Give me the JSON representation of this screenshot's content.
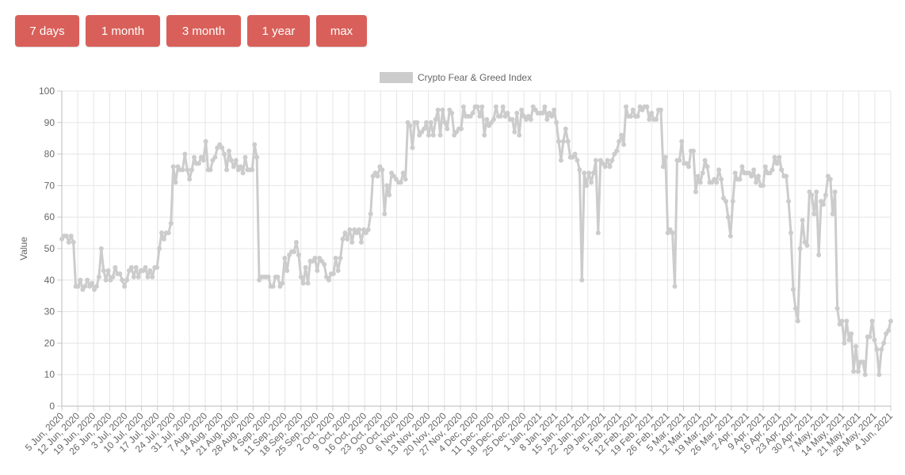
{
  "range_buttons": {
    "b7d": "7 days",
    "b1m": "1 month",
    "b3m": "3 month",
    "b1y": "1 year",
    "bmax": "max"
  },
  "colors": {
    "button": "#d9605a",
    "series": "#cccccc",
    "grid": "#e5e5e5",
    "text": "#666666"
  },
  "chart_data": {
    "type": "line",
    "legend": "Crypto Fear & Greed Index",
    "legend_position": "top",
    "ylabel": "Value",
    "xlabel": "",
    "ylim": [
      0,
      100
    ],
    "y_ticks": [
      0,
      10,
      20,
      30,
      40,
      50,
      60,
      70,
      80,
      90,
      100
    ],
    "grid": true,
    "x_tick_labels": [
      "5 Jun, 2020",
      "12 Jun, 2020",
      "19 Jun, 2020",
      "26 Jun, 2020",
      "3 Jul, 2020",
      "10 Jul, 2020",
      "17 Jul, 2020",
      "24 Jul, 2020",
      "31 Jul, 2020",
      "7 Aug, 2020",
      "14 Aug, 2020",
      "21 Aug, 2020",
      "28 Aug, 2020",
      "4 Sep, 2020",
      "11 Sep, 2020",
      "18 Sep, 2020",
      "25 Sep, 2020",
      "2 Oct, 2020",
      "9 Oct, 2020",
      "16 Oct, 2020",
      "23 Oct, 2020",
      "30 Oct, 2020",
      "6 Nov, 2020",
      "13 Nov, 2020",
      "20 Nov, 2020",
      "27 Nov, 2020",
      "4 Dec, 2020",
      "11 Dec, 2020",
      "18 Dec, 2020",
      "25 Dec, 2020",
      "1 Jan, 2021",
      "8 Jan, 2021",
      "15 Jan, 2021",
      "22 Jan, 2021",
      "29 Jan, 2021",
      "5 Feb, 2021",
      "12 Feb, 2021",
      "19 Feb, 2021",
      "26 Feb, 2021",
      "5 Mar, 2021",
      "12 Mar, 2021",
      "19 Mar, 2021",
      "26 Mar, 2021",
      "2 Apr, 2021",
      "9 Apr, 2021",
      "16 Apr, 2021",
      "23 Apr, 2021",
      "30 Apr, 2021",
      "7 May, 2021",
      "14 May, 2021",
      "21 May, 2021",
      "28 May, 2021",
      "4 Jun, 2021"
    ],
    "series": [
      {
        "name": "Crypto Fear & Greed Index",
        "values": [
          53,
          54,
          54,
          52,
          54,
          52,
          38,
          38,
          40,
          37,
          38,
          40,
          38,
          39,
          37,
          38,
          41,
          50,
          43,
          40,
          43,
          40,
          41,
          44,
          42,
          42,
          40,
          38,
          40,
          43,
          44,
          41,
          44,
          41,
          43,
          43,
          44,
          41,
          43,
          41,
          44,
          44,
          50,
          55,
          53,
          55,
          55,
          58,
          76,
          71,
          76,
          75,
          75,
          80,
          75,
          72,
          75,
          79,
          77,
          77,
          79,
          78,
          84,
          75,
          75,
          78,
          79,
          82,
          83,
          82,
          80,
          75,
          81,
          78,
          76,
          78,
          75,
          76,
          74,
          79,
          75,
          75,
          75,
          83,
          79,
          40,
          41,
          41,
          41,
          41,
          38,
          38,
          41,
          41,
          38,
          39,
          47,
          43,
          48,
          49,
          49,
          52,
          48,
          41,
          39,
          44,
          39,
          46,
          46,
          47,
          43,
          47,
          46,
          45,
          41,
          40,
          42,
          42,
          47,
          43,
          47,
          53,
          55,
          53,
          56,
          52,
          56,
          55,
          56,
          52,
          56,
          55,
          56,
          61,
          73,
          74,
          73,
          76,
          75,
          61,
          70,
          67,
          74,
          73,
          72,
          71,
          71,
          74,
          72,
          90,
          89,
          82,
          90,
          90,
          86,
          87,
          88,
          90,
          86,
          90,
          86,
          91,
          94,
          86,
          94,
          90,
          88,
          94,
          93,
          86,
          87,
          88,
          88,
          95,
          92,
          92,
          92,
          93,
          95,
          95,
          92,
          95,
          86,
          91,
          89,
          90,
          91,
          95,
          92,
          92,
          95,
          92,
          93,
          91,
          91,
          87,
          93,
          86,
          94,
          92,
          91,
          92,
          91,
          95,
          94,
          93,
          93,
          93,
          95,
          91,
          93,
          92,
          94,
          90,
          84,
          78,
          84,
          88,
          84,
          79,
          79,
          80,
          78,
          75,
          40,
          74,
          70,
          74,
          71,
          74,
          78,
          55,
          78,
          77,
          76,
          78,
          76,
          78,
          80,
          81,
          84,
          86,
          83,
          95,
          92,
          92,
          94,
          92,
          92,
          95,
          94,
          95,
          95,
          91,
          93,
          91,
          91,
          94,
          94,
          76,
          79,
          55,
          56,
          55,
          38,
          78,
          78,
          84,
          77,
          77,
          76,
          81,
          81,
          68,
          73,
          71,
          74,
          78,
          76,
          71,
          71,
          72,
          71,
          75,
          72,
          66,
          65,
          60,
          54,
          65,
          74,
          72,
          72,
          76,
          74,
          74,
          74,
          73,
          75,
          71,
          73,
          70,
          70,
          76,
          74,
          74,
          75,
          79,
          77,
          79,
          75,
          73,
          73,
          65,
          55,
          37,
          31,
          27,
          50,
          59,
          52,
          51,
          68,
          67,
          61,
          68,
          48,
          65,
          64,
          67,
          73,
          72,
          61,
          68,
          31,
          26,
          27,
          20,
          27,
          21,
          23,
          11,
          19,
          11,
          14,
          14,
          10,
          22,
          22,
          27,
          21,
          18,
          10,
          18,
          20,
          23,
          24,
          27
        ]
      }
    ]
  }
}
